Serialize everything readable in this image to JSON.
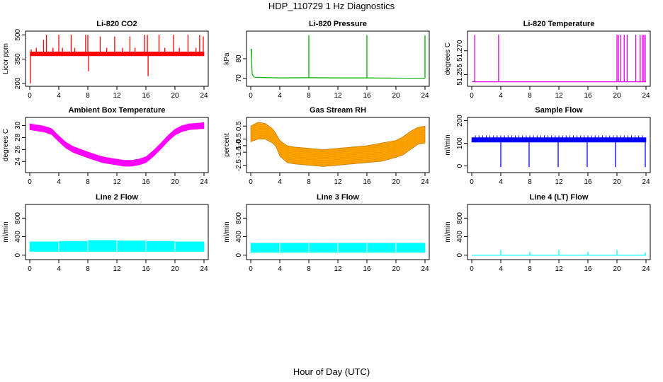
{
  "figure": {
    "title": "HDP_110729  1 Hz Diagnostics",
    "xlabel": "Hour of Day (UTC)"
  },
  "chart_data": [
    {
      "type": "line",
      "title": "Li-820 CO2",
      "ylabel": "Licor ppm",
      "color": "#ff0000",
      "xlim": [
        0,
        24
      ],
      "ylim": [
        195,
        510
      ],
      "xticks": [
        0,
        4,
        8,
        12,
        16,
        20,
        24
      ],
      "yticks": [
        200,
        350,
        500
      ],
      "yticklabels": [
        "200",
        "350",
        "500"
      ],
      "style": "band",
      "band": {
        "x": [
          0.05,
          24
        ],
        "lo": [
          370,
          370
        ],
        "hi": [
          395,
          395
        ]
      },
      "spikes": [
        {
          "x": 0.1,
          "y": 200
        },
        {
          "x": 0.2,
          "y": 410
        },
        {
          "x": 0.9,
          "y": 420
        },
        {
          "x": 1.9,
          "y": 470
        },
        {
          "x": 2.3,
          "y": 500
        },
        {
          "x": 3.2,
          "y": 420
        },
        {
          "x": 4.0,
          "y": 500
        },
        {
          "x": 4.5,
          "y": 420
        },
        {
          "x": 5.7,
          "y": 500
        },
        {
          "x": 6.2,
          "y": 420
        },
        {
          "x": 7.7,
          "y": 500
        },
        {
          "x": 8.0,
          "y": 500
        },
        {
          "x": 8.1,
          "y": 275
        },
        {
          "x": 9.7,
          "y": 490
        },
        {
          "x": 10.6,
          "y": 420
        },
        {
          "x": 11.7,
          "y": 490
        },
        {
          "x": 12.8,
          "y": 420
        },
        {
          "x": 13.8,
          "y": 490
        },
        {
          "x": 14.5,
          "y": 420
        },
        {
          "x": 15.8,
          "y": 500
        },
        {
          "x": 16.2,
          "y": 500
        },
        {
          "x": 16.3,
          "y": 245
        },
        {
          "x": 17.8,
          "y": 500
        },
        {
          "x": 18.6,
          "y": 420
        },
        {
          "x": 19.8,
          "y": 500
        },
        {
          "x": 20.6,
          "y": 420
        },
        {
          "x": 21.8,
          "y": 500
        },
        {
          "x": 22.9,
          "y": 420
        },
        {
          "x": 23.4,
          "y": 500
        },
        {
          "x": 23.9,
          "y": 490
        }
      ]
    },
    {
      "type": "line",
      "title": "Li-820 Pressure",
      "ylabel": "kPa",
      "color": "#00b000",
      "xlim": [
        0,
        24
      ],
      "ylim": [
        67,
        93
      ],
      "xticks": [
        0,
        4,
        8,
        12,
        16,
        20,
        24
      ],
      "yticks": [
        70,
        80
      ],
      "yticklabels": [
        "70",
        "80"
      ],
      "style": "line",
      "series": {
        "x": [
          0.05,
          0.2,
          0.5,
          4,
          8,
          12,
          16,
          20,
          24
        ],
        "y": [
          85,
          72,
          70.5,
          70.2,
          70.3,
          70.2,
          70.2,
          70.1,
          70.0
        ]
      },
      "spikes": [
        {
          "x": 8.0,
          "y": 92
        },
        {
          "x": 16.0,
          "y": 92
        },
        {
          "x": 24.0,
          "y": 92
        },
        {
          "x": 0.1,
          "y": 85
        }
      ]
    },
    {
      "type": "line",
      "title": "Li-820 Temperature",
      "ylabel": "degrees C",
      "color": "#e000e0",
      "xlim": [
        0,
        24
      ],
      "ylim": [
        51.249,
        51.281
      ],
      "xticks": [
        0,
        4,
        8,
        12,
        16,
        20,
        24
      ],
      "yticks": [
        51.255,
        51.27
      ],
      "yticklabels": [
        "51.255",
        "51.270"
      ],
      "style": "line",
      "series": {
        "x": [
          0.05,
          24
        ],
        "y": [
          51.2505,
          51.2505
        ]
      },
      "spikes": [
        {
          "x": 0.4,
          "y": 51.28
        },
        {
          "x": 3.7,
          "y": 51.28
        },
        {
          "x": 20.0,
          "y": 51.28
        },
        {
          "x": 20.2,
          "y": 51.28
        },
        {
          "x": 20.5,
          "y": 51.28
        },
        {
          "x": 21.0,
          "y": 51.28
        },
        {
          "x": 21.4,
          "y": 51.28
        },
        {
          "x": 22.6,
          "y": 51.28
        },
        {
          "x": 23.2,
          "y": 51.28
        },
        {
          "x": 23.5,
          "y": 51.28
        },
        {
          "x": 23.7,
          "y": 51.28
        },
        {
          "x": 23.9,
          "y": 51.28
        }
      ]
    },
    {
      "type": "area",
      "title": "Ambient Box Temperature",
      "ylabel": "degrees C",
      "color": "#ff00ff",
      "xlim": [
        0,
        24
      ],
      "ylim": [
        22.5,
        31
      ],
      "xticks": [
        0,
        4,
        8,
        12,
        16,
        20,
        24
      ],
      "yticks": [
        24,
        26,
        28,
        30
      ],
      "yticklabels": [
        "24",
        "26",
        "28",
        "30"
      ],
      "style": "band",
      "band": {
        "x": [
          0,
          2,
          3,
          4,
          5,
          6,
          8,
          10,
          12,
          13,
          14,
          15,
          16,
          17,
          18,
          19,
          20,
          21,
          22,
          24
        ],
        "lo": [
          29.3,
          28.9,
          28.5,
          27.3,
          26.2,
          25.5,
          24.6,
          23.8,
          23.4,
          23.2,
          23.2,
          23.4,
          23.8,
          24.8,
          26.0,
          27.3,
          28.4,
          29.0,
          29.3,
          29.5
        ],
        "hi": [
          30.3,
          29.9,
          29.5,
          28.3,
          27.2,
          26.5,
          25.6,
          24.8,
          24.4,
          24.2,
          24.2,
          24.4,
          24.8,
          25.8,
          27.0,
          28.3,
          29.4,
          30.0,
          30.3,
          30.5
        ]
      }
    },
    {
      "type": "area",
      "title": "Gas Stream RH",
      "ylabel": "percent",
      "color": "#ffa500",
      "stroke": "#c07000",
      "xlim": [
        0,
        24
      ],
      "ylim": [
        -2.9,
        1.0
      ],
      "xticks": [
        0,
        4,
        8,
        12,
        16,
        20,
        24
      ],
      "yticks": [
        -2.5,
        -1.5,
        -1.0,
        -0.5,
        0.5
      ],
      "yticklabels": [
        "-2.5",
        "-1.5",
        "-1.0",
        "-0.5",
        "0.5"
      ],
      "style": "band",
      "band": {
        "x": [
          0,
          1,
          2,
          3,
          3.5,
          4,
          5,
          6,
          8,
          10,
          12,
          14,
          16,
          18,
          20,
          21,
          22,
          23,
          24
        ],
        "lo": [
          -0.7,
          -0.5,
          -0.5,
          -0.8,
          -1.1,
          -1.8,
          -2.3,
          -2.4,
          -2.5,
          -2.6,
          -2.5,
          -2.4,
          -2.3,
          -2.2,
          -1.9,
          -1.7,
          -1.3,
          -0.9,
          -0.8
        ],
        "hi": [
          0.5,
          0.8,
          0.7,
          0.3,
          -0.1,
          -0.6,
          -1.0,
          -1.1,
          -1.2,
          -1.3,
          -1.2,
          -1.1,
          -1.0,
          -0.8,
          -0.6,
          -0.3,
          0.1,
          0.4,
          0.5
        ]
      }
    },
    {
      "type": "line",
      "title": "Sample Flow",
      "ylabel": "ml/min",
      "color": "#0000ff",
      "xlim": [
        0,
        24
      ],
      "ylim": [
        -20,
        205
      ],
      "xticks": [
        0,
        4,
        8,
        12,
        16,
        20,
        24
      ],
      "yticks": [
        0,
        100,
        200
      ],
      "yticklabels": [
        "0",
        "100",
        "200"
      ],
      "style": "band",
      "band": {
        "x": [
          0,
          24
        ],
        "lo": [
          105,
          105
        ],
        "hi": [
          125,
          125
        ]
      },
      "spikes": [
        {
          "x": 4.0,
          "y": -5
        },
        {
          "x": 7.9,
          "y": -5
        },
        {
          "x": 11.9,
          "y": -5
        },
        {
          "x": 15.9,
          "y": -5
        },
        {
          "x": 19.8,
          "y": -5
        },
        {
          "x": 23.9,
          "y": -5
        }
      ],
      "ticks_up": {
        "spacing": 0.5,
        "y": 135
      }
    },
    {
      "type": "area",
      "title": "Line 2 Flow",
      "ylabel": "ml/min",
      "color": "#00ffff",
      "xlim": [
        0,
        24
      ],
      "ylim": [
        -50,
        1050
      ],
      "xticks": [
        0,
        4,
        8,
        12,
        16,
        20,
        24
      ],
      "yticks": [
        0,
        400,
        800
      ],
      "yticklabels": [
        "0",
        "400",
        "800"
      ],
      "style": "band",
      "band": {
        "x": [
          0,
          4,
          4.01,
          8,
          8.01,
          12,
          12.01,
          16,
          16.01,
          20,
          20.01,
          24
        ],
        "lo": [
          80,
          80,
          80,
          80,
          80,
          80,
          80,
          80,
          80,
          80,
          80,
          80
        ],
        "hi": [
          290,
          290,
          300,
          300,
          320,
          320,
          310,
          310,
          300,
          300,
          290,
          290
        ]
      },
      "gaps": [
        4,
        8,
        12,
        16,
        20
      ]
    },
    {
      "type": "area",
      "title": "Line 3 Flow",
      "ylabel": "ml/min",
      "color": "#00ffff",
      "xlim": [
        0,
        24
      ],
      "ylim": [
        -50,
        1050
      ],
      "xticks": [
        0,
        4,
        8,
        12,
        16,
        20,
        24
      ],
      "yticks": [
        0,
        400,
        800
      ],
      "yticklabels": [
        "0",
        "400",
        "800"
      ],
      "style": "band",
      "band": {
        "x": [
          0,
          24
        ],
        "lo": [
          60,
          60
        ],
        "hi": [
          260,
          260
        ]
      },
      "gaps": [
        4,
        8,
        12,
        16,
        20
      ]
    },
    {
      "type": "line",
      "title": "Line 4 (LT) Flow",
      "ylabel": "ml/min",
      "color": "#00ffff",
      "xlim": [
        0,
        24
      ],
      "ylim": [
        -50,
        1050
      ],
      "xticks": [
        0,
        4,
        8,
        12,
        16,
        20,
        24
      ],
      "yticks": [
        0,
        400,
        800
      ],
      "yticklabels": [
        "0",
        "400",
        "800"
      ],
      "style": "line",
      "series": {
        "x": [
          0,
          24
        ],
        "y": [
          0,
          0
        ]
      },
      "spikes": [
        {
          "x": 4.0,
          "y": 110
        },
        {
          "x": 8.0,
          "y": 70
        },
        {
          "x": 12.0,
          "y": 110
        },
        {
          "x": 16.0,
          "y": 70
        },
        {
          "x": 20.0,
          "y": 110
        },
        {
          "x": 23.9,
          "y": 60
        }
      ]
    }
  ]
}
